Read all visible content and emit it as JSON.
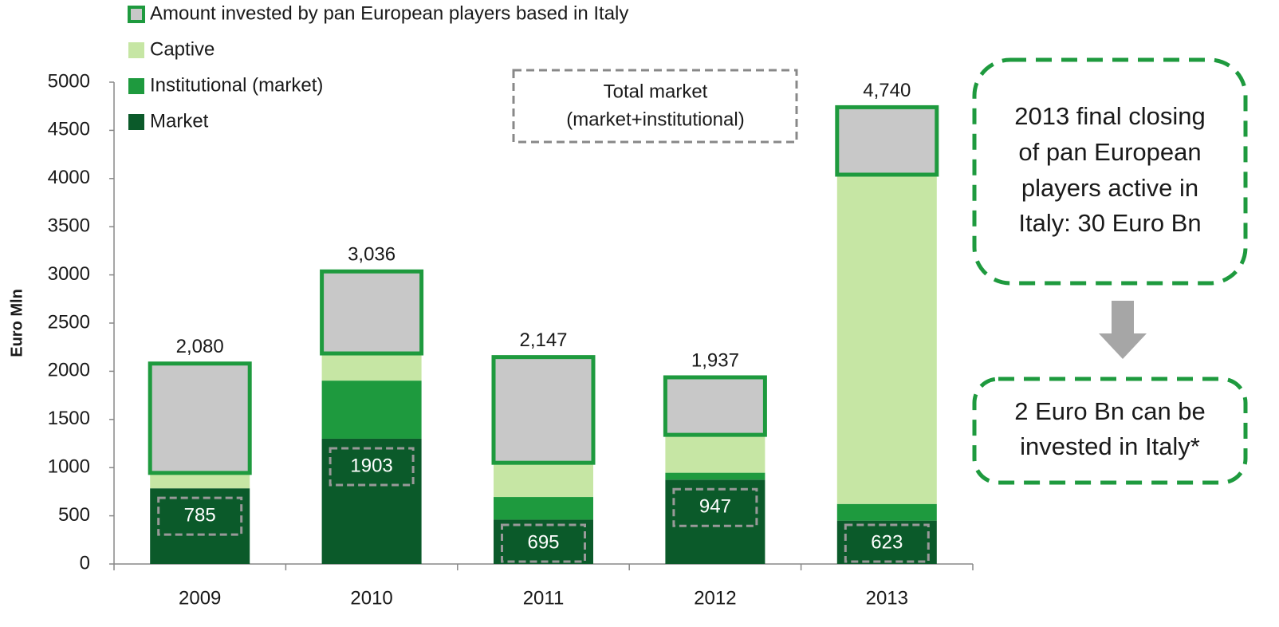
{
  "chart_data": {
    "type": "stacked_bar",
    "y_label": "Euro Mln",
    "categories": [
      "2009",
      "2010",
      "2011",
      "2012",
      "2013"
    ],
    "series": [
      {
        "name": "Market",
        "color": "#0b5a2a",
        "values": [
          785,
          1300,
          460,
          875,
          450
        ]
      },
      {
        "name": "Institutional (market)",
        "color": "#1e9a3e",
        "values": [
          0,
          603,
          235,
          72,
          173
        ]
      },
      {
        "name": "Captive",
        "color": "#c6e6a4",
        "values": [
          160,
          282,
          355,
          393,
          3417
        ]
      },
      {
        "name": "Amount invested by pan European players based in Italy",
        "color": "#c8c8c8",
        "outline": "#1e9a3e",
        "values": [
          1135,
          851,
          1097,
          597,
          700
        ]
      }
    ],
    "totals": [
      2080,
      3036,
      2147,
      1937,
      4740
    ],
    "total_labels": [
      "2,080",
      "3,036",
      "2,147",
      "1,937",
      "4,740"
    ],
    "market_institutional": [
      785,
      1903,
      695,
      947,
      623
    ],
    "market_institutional_note": [
      "Total market",
      "(market+institutional)"
    ],
    "callouts": [
      [
        "2013 final closing",
        "of pan European",
        "players active in",
        "Italy: 30 Euro Bn"
      ],
      [
        "2 Euro Bn can be",
        "invested in Italy*"
      ]
    ],
    "ylim": [
      0,
      5000
    ],
    "yticks": [
      0,
      500,
      1000,
      1500,
      2000,
      2500,
      3000,
      3500,
      4000,
      4500,
      5000
    ]
  }
}
